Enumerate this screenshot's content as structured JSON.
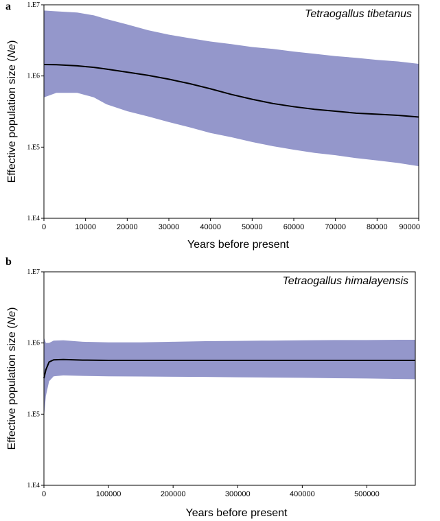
{
  "chart_data": [
    {
      "panel_label": "a",
      "type": "area",
      "species": "Tetraogallus tibetanus",
      "xlabel": "Years before present",
      "ylabel_prefix": "Effective population size (",
      "ylabel_italic": "Ne",
      "ylabel_suffix": ")",
      "y_scale": "log",
      "xlim": [
        0,
        90000
      ],
      "ylim": [
        10000,
        10000000
      ],
      "x_ticks": [
        0,
        10000,
        20000,
        30000,
        40000,
        50000,
        60000,
        70000,
        80000,
        90000
      ],
      "x_tick_labels": [
        "0",
        "10000",
        "20000",
        "30000",
        "40000",
        "50000",
        "60000",
        "70000",
        "80000",
        "90000"
      ],
      "y_ticks": [
        10000,
        100000,
        1000000,
        10000000
      ],
      "y_tick_labels": [
        "1.E4",
        "1.E5",
        "1.E6",
        "1.E7"
      ],
      "band_color": "#9497cb",
      "line_color": "#000000",
      "x": [
        0,
        3000,
        8000,
        12000,
        15000,
        20000,
        25000,
        30000,
        35000,
        40000,
        45000,
        50000,
        55000,
        60000,
        65000,
        70000,
        75000,
        80000,
        85000,
        90000
      ],
      "median": [
        1450000,
        1440000,
        1390000,
        1320000,
        1250000,
        1130000,
        1020000,
        900000,
        780000,
        660000,
        550000,
        470000,
        410000,
        370000,
        340000,
        320000,
        300000,
        290000,
        280000,
        265000
      ],
      "lower": [
        500000,
        580000,
        580000,
        500000,
        400000,
        320000,
        270000,
        225000,
        190000,
        158000,
        138000,
        118000,
        103000,
        92000,
        83000,
        77000,
        70000,
        65000,
        60000,
        54000
      ],
      "upper": [
        8300000,
        8100000,
        7800000,
        7100000,
        6300000,
        5300000,
        4400000,
        3800000,
        3400000,
        3050000,
        2800000,
        2550000,
        2400000,
        2200000,
        2050000,
        1900000,
        1800000,
        1680000,
        1600000,
        1480000
      ]
    },
    {
      "panel_label": "b",
      "type": "area",
      "species": "Tetraogallus himalayensis",
      "xlabel": "Years before present",
      "ylabel_prefix": "Effective population size (",
      "ylabel_italic": "Ne",
      "ylabel_suffix": ")",
      "y_scale": "log",
      "xlim": [
        0,
        575000
      ],
      "ylim": [
        10000,
        10000000
      ],
      "x_ticks": [
        0,
        100000,
        200000,
        300000,
        400000,
        500000
      ],
      "x_tick_labels": [
        "0",
        "100000",
        "200000",
        "300000",
        "400000",
        "500000"
      ],
      "y_ticks": [
        10000,
        100000,
        1000000,
        10000000
      ],
      "y_tick_labels": [
        "1.E4",
        "1.E5",
        "1.E6",
        "1.E7"
      ],
      "band_color": "#9497cb",
      "line_color": "#000000",
      "x": [
        0,
        3000,
        8000,
        15000,
        30000,
        60000,
        100000,
        150000,
        200000,
        250000,
        300000,
        350000,
        400000,
        450000,
        500000,
        550000,
        575000
      ],
      "median": [
        320000,
        420000,
        540000,
        580000,
        585000,
        575000,
        570000,
        570000,
        570000,
        570000,
        570000,
        570000,
        570000,
        570000,
        570000,
        570000,
        570000
      ],
      "lower": [
        90000,
        180000,
        290000,
        340000,
        350000,
        345000,
        340000,
        338000,
        335000,
        333000,
        330000,
        327000,
        324000,
        320000,
        317000,
        312000,
        310000
      ],
      "upper": [
        1200000,
        1000000,
        1000000,
        1080000,
        1090000,
        1040000,
        1020000,
        1020000,
        1040000,
        1060000,
        1070000,
        1080000,
        1090000,
        1100000,
        1100000,
        1110000,
        1110000
      ]
    }
  ]
}
